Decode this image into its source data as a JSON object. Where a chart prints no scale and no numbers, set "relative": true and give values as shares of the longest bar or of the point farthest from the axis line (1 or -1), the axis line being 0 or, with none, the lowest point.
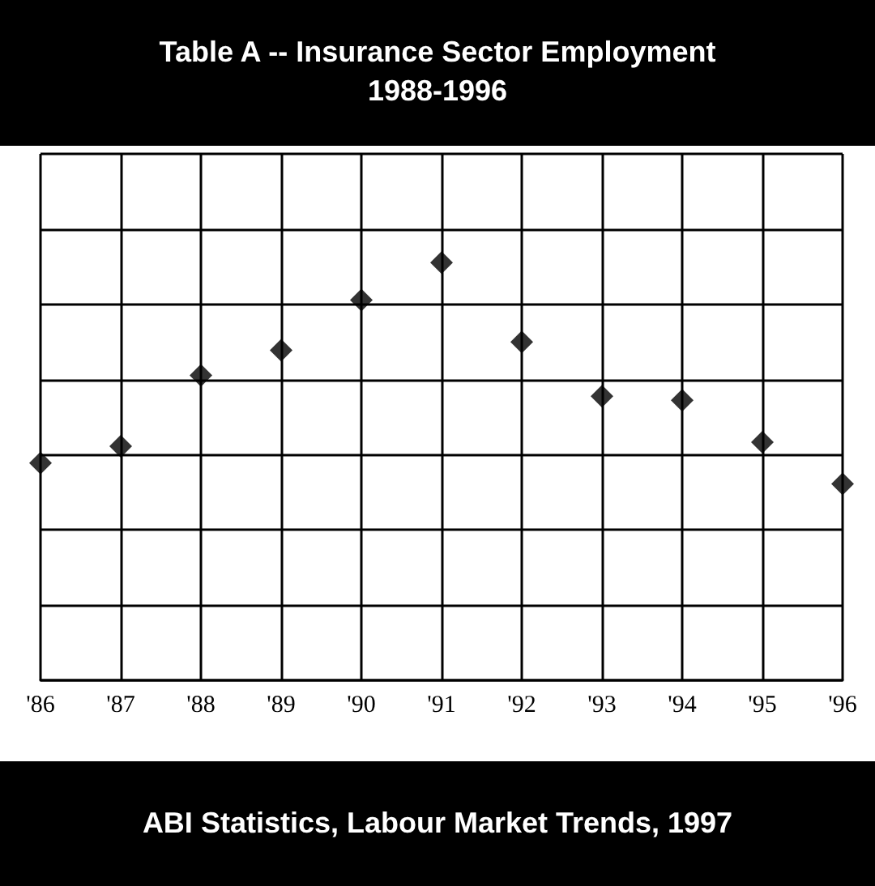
{
  "chart_data": {
    "type": "scatter",
    "title": "Table A -- Insurance Sector Employment\n1988-1996",
    "categories": [
      "'86",
      "'87",
      "'88",
      "'89",
      "'90",
      "'91",
      "'92",
      "'93",
      "'94",
      "'95",
      "'96"
    ],
    "values": [
      0.52,
      0.56,
      0.73,
      0.79,
      0.91,
      1,
      0.81,
      0.68,
      0.67,
      0.57,
      0.47
    ],
    "color": "#000000",
    "relative": true,
    "marker": "diamond",
    "grid": true,
    "annotations": [
      "ABI Statistics, Labour Market Trends, 1997"
    ]
  }
}
